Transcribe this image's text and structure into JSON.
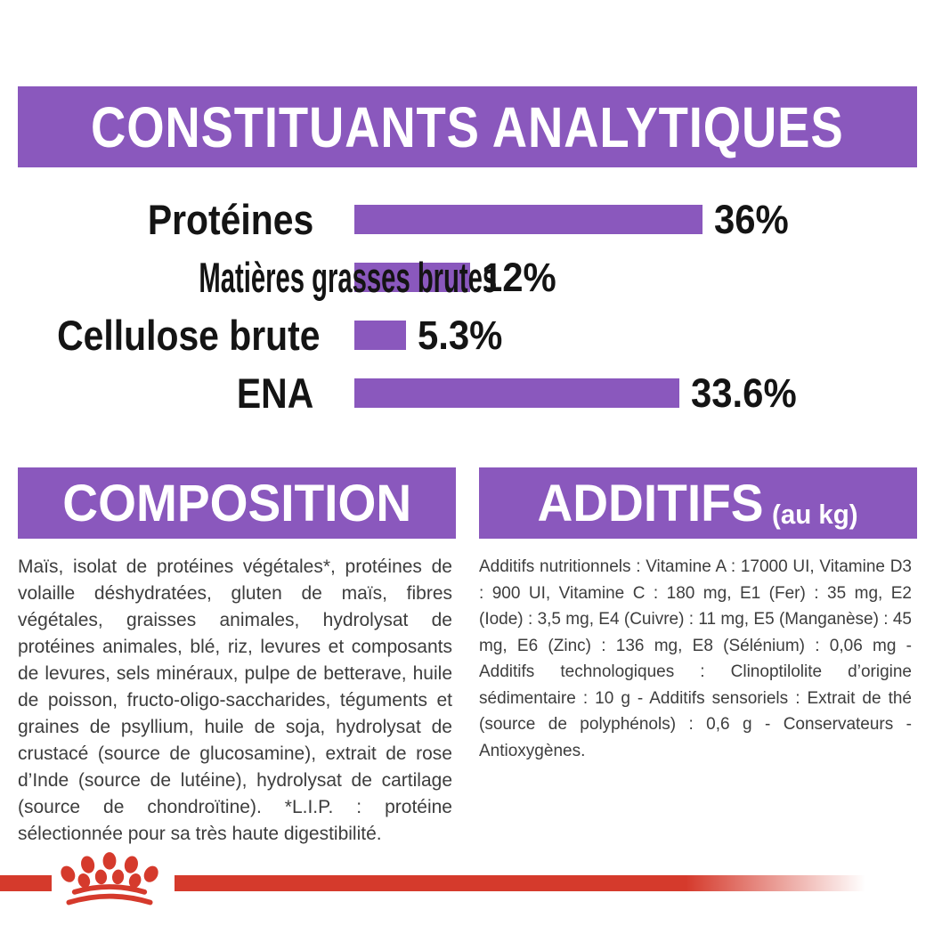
{
  "colors": {
    "purple": "#8a58bd",
    "red": "#d53a2c",
    "label_text": "#141414",
    "body_text": "#3d3d3d",
    "banner_text": "#ffffff",
    "background": "#ffffff"
  },
  "header": {
    "title": "CONSTITUANTS ANALYTIQUES"
  },
  "chart_data": {
    "type": "bar",
    "orientation": "horizontal",
    "title": "CONSTITUANTS ANALYTIQUES",
    "categories": [
      "Protéines",
      "Matières grasses brutes",
      "Cellulose brute",
      "ENA"
    ],
    "values": [
      36,
      12,
      5.3,
      33.6
    ],
    "value_labels": [
      "36%",
      "12%",
      "5.3%",
      "33.6%"
    ],
    "unit": "%",
    "xlim": [
      0,
      36
    ],
    "bar_color": "#8a58bd",
    "grid": false,
    "legend": false
  },
  "composition": {
    "title": "COMPOSITION",
    "body": "Maïs, isolat de protéines végétales*, protéines de volaille déshydratées, gluten de maïs, fibres végétales, graisses animales, hydrolysat de protéines animales, blé, riz, levures et composants de levures, sels minéraux, pulpe de betterave, huile de poisson, fructo-oligo-saccharides, téguments et graines de psyllium, huile de soja, hydrolysat de crustacé (source de glucosamine), extrait de rose d’Inde (source de lutéine), hydrolysat de cartilage (source de chondroïtine). *L.I.P. : protéine sélectionnée pour sa très haute digestibilité."
  },
  "additifs": {
    "title": "ADDITIFS",
    "title_suffix": "(au kg)",
    "body": "Additifs nutritionnels : Vitamine A : 17000 UI, Vitamine D3 : 900 UI, Vitamine C : 180 mg, E1 (Fer) : 35 mg, E2 (Iode) : 3,5 mg, E4 (Cuivre) : 11 mg, E5 (Manganèse) : 45 mg, E6 (Zinc) : 136 mg, E8 (Sélénium) : 0,06 mg - Additifs technologiques : Clinoptilolite d’origine sédimentaire : 10 g - Additifs sensoriels : Extrait de thé (source de polyphénols) : 0,6 g - Conservateurs - Antioxygènes."
  },
  "footer": {
    "logo": "royal-canin-crown",
    "divider_color": "#d53a2c"
  }
}
